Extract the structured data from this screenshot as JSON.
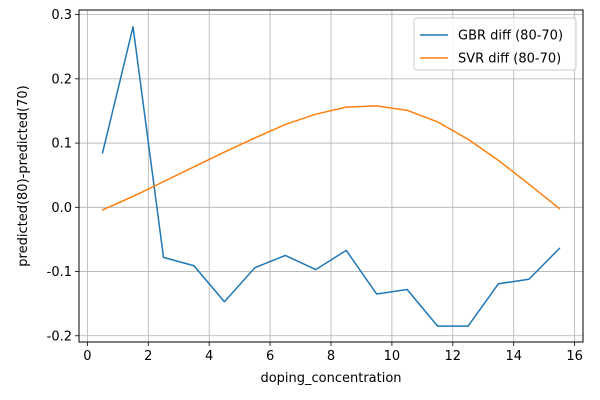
{
  "chart_data": {
    "type": "line",
    "title": "",
    "xlabel": "doping_concentration",
    "ylabel": "predicted(80)-predicted(70)",
    "xlim": [
      -0.275,
      16.275
    ],
    "ylim": [
      -0.2097,
      0.3072
    ],
    "xticks": [
      0,
      2,
      4,
      6,
      8,
      10,
      12,
      14,
      16
    ],
    "yticks": [
      -0.2,
      -0.1,
      0.0,
      0.1,
      0.2,
      0.3
    ],
    "grid": true,
    "legend_position": "top-right",
    "series": [
      {
        "name": "GBR diff (80-70)",
        "color": "#1f77b4",
        "x": [
          0.5,
          1.5,
          2.5,
          3.5,
          4.5,
          5.5,
          6.5,
          7.5,
          8.5,
          9.5,
          10.5,
          11.5,
          12.5,
          13.5,
          14.5,
          15.5
        ],
        "y": [
          0.085,
          0.281,
          -0.078,
          -0.091,
          -0.147,
          -0.094,
          -0.075,
          -0.097,
          -0.067,
          -0.135,
          -0.128,
          -0.185,
          -0.185,
          -0.119,
          -0.112,
          -0.064
        ]
      },
      {
        "name": "SVR diff (80-70)",
        "color": "#ff7f0e",
        "x": [
          0.5,
          1.5,
          2.5,
          3.5,
          4.5,
          5.5,
          6.5,
          7.5,
          8.5,
          9.5,
          10.5,
          11.5,
          12.5,
          13.5,
          14.5,
          15.5
        ],
        "y": [
          -0.004,
          0.017,
          0.04,
          0.063,
          0.086,
          0.108,
          0.129,
          0.145,
          0.156,
          0.158,
          0.151,
          0.133,
          0.106,
          0.073,
          0.036,
          -0.002
        ]
      }
    ]
  }
}
